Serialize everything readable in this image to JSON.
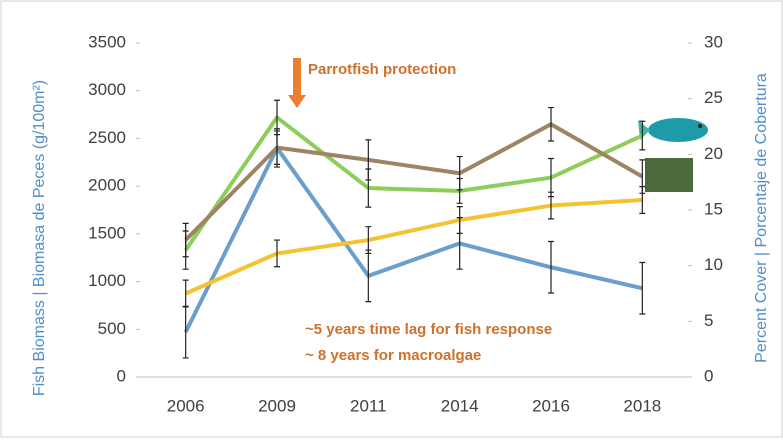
{
  "chart_data": {
    "type": "line",
    "categories": [
      "2006",
      "2009",
      "2011",
      "2014",
      "2016",
      "2018"
    ],
    "y_label": "Fish Biomass  |  Biomasa de Peces (g/100m²)",
    "y2_label": "Percent Cover  |  Porcentaje de Cobertura",
    "annotations": [
      "Parrotfish protection",
      "~5 years time lag for fish response",
      "~ 8 years for macroalgae"
    ],
    "ylim": [
      0,
      3500
    ],
    "yticks": [
      0,
      500,
      1000,
      1500,
      2000,
      2500,
      3000,
      3500
    ],
    "y2lim": [
      0,
      30
    ],
    "y2ticks": [
      0,
      5,
      10,
      15,
      20,
      25,
      30
    ],
    "series": [
      {
        "color": "#6a9fcb",
        "values": [
          470,
          2400,
          1060,
          1400,
          1150,
          930
        ],
        "errors": [
          270,
          200,
          270,
          270,
          270,
          270
        ]
      },
      {
        "color": "#8dcd5a",
        "values": [
          1330,
          2720,
          1980,
          1950,
          2090,
          2530
        ],
        "errors": [
          200,
          180,
          200,
          130,
          200,
          150
        ]
      },
      {
        "color": "#9c8464",
        "axis": "y2",
        "values": [
          12.3,
          20.6,
          19.5,
          18.3,
          22.7,
          18.0
        ],
        "errors": [
          1.5,
          1.5,
          1.8,
          1.5,
          1.5,
          1.5
        ]
      },
      {
        "color": "#f5c231",
        "axis": "y2",
        "values": [
          7.5,
          11.1,
          12.3,
          14.1,
          15.4,
          15.9
        ],
        "errors": [
          1.2,
          1.2,
          1.2,
          1.2,
          1.2,
          1.2
        ]
      }
    ]
  }
}
